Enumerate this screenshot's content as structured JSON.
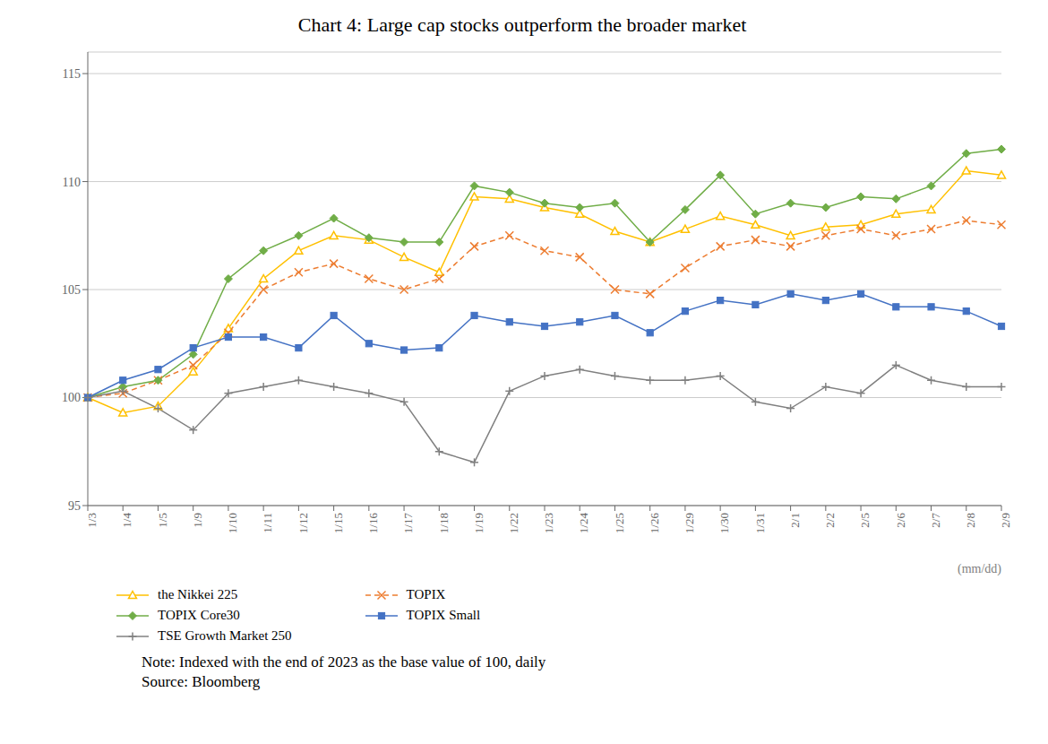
{
  "chart_data": {
    "type": "line",
    "title": "Chart 4: Large cap stocks outperform the broader market",
    "xlabel": "(mm/dd)",
    "annotations": [
      "Note: Indexed with the end of 2023 as the base value of 100, daily\nSource: Bloomberg"
    ],
    "categories": [
      "1/3",
      "1/4",
      "1/5",
      "1/9",
      "1/10",
      "1/11",
      "1/12",
      "1/15",
      "1/16",
      "1/17",
      "1/18",
      "1/19",
      "1/22",
      "1/23",
      "1/24",
      "1/25",
      "1/26",
      "1/29",
      "1/30",
      "1/31",
      "2/1",
      "2/2",
      "2/5",
      "2/6",
      "2/7",
      "2/8",
      "2/9"
    ],
    "series": [
      {
        "name": "the Nikkei 225",
        "color": "#FFC000",
        "marker": "triangle",
        "line_style": "solid",
        "values": [
          100.0,
          99.3,
          99.6,
          101.2,
          103.2,
          105.5,
          106.8,
          107.5,
          107.3,
          106.5,
          105.8,
          109.3,
          109.2,
          108.8,
          108.5,
          107.7,
          107.2,
          107.8,
          108.4,
          108.0,
          107.5,
          107.9,
          108.0,
          108.5,
          108.7,
          110.5,
          110.3
        ]
      },
      {
        "name": "TOPIX",
        "color": "#ED7D31",
        "marker": "x",
        "line_style": "dashed",
        "values": [
          100.0,
          100.2,
          100.8,
          101.5,
          103.0,
          105.0,
          105.8,
          106.2,
          105.5,
          105.0,
          105.5,
          107.0,
          107.5,
          106.8,
          106.5,
          105.0,
          104.8,
          106.0,
          107.0,
          107.3,
          107.0,
          107.5,
          107.8,
          107.5,
          107.8,
          108.2,
          108.0
        ]
      },
      {
        "name": "TOPIX Core30",
        "color": "#70AD47",
        "marker": "diamond",
        "line_style": "solid",
        "values": [
          100.0,
          100.5,
          100.8,
          102.0,
          105.5,
          106.8,
          107.5,
          108.3,
          107.4,
          107.2,
          107.2,
          109.8,
          109.5,
          109.0,
          108.8,
          109.0,
          107.2,
          108.7,
          110.3,
          108.5,
          109.0,
          108.8,
          109.3,
          109.2,
          109.8,
          111.3,
          111.5
        ]
      },
      {
        "name": "TOPIX Small",
        "color": "#4472C4",
        "marker": "square",
        "line_style": "solid",
        "values": [
          100.0,
          100.8,
          101.3,
          102.3,
          102.8,
          102.8,
          102.3,
          103.8,
          102.5,
          102.2,
          102.3,
          103.8,
          103.5,
          103.3,
          103.5,
          103.8,
          103.0,
          104.0,
          104.5,
          104.3,
          104.8,
          104.5,
          104.8,
          104.2,
          104.2,
          104.0,
          103.3
        ]
      },
      {
        "name": "TSE Growth Market 250",
        "color": "#808080",
        "marker": "plus",
        "line_style": "solid",
        "values": [
          100.0,
          100.3,
          99.5,
          98.5,
          100.2,
          100.5,
          100.8,
          100.5,
          100.2,
          99.8,
          97.5,
          97.0,
          100.3,
          101.0,
          101.3,
          101.0,
          100.8,
          100.8,
          101.0,
          99.8,
          99.5,
          100.5,
          100.2,
          101.5,
          100.8,
          100.5,
          100.5
        ]
      }
    ],
    "ylim": [
      95,
      116
    ],
    "yticks": [
      95,
      100,
      105,
      110,
      115
    ],
    "grid": true,
    "legend": "bottom"
  }
}
